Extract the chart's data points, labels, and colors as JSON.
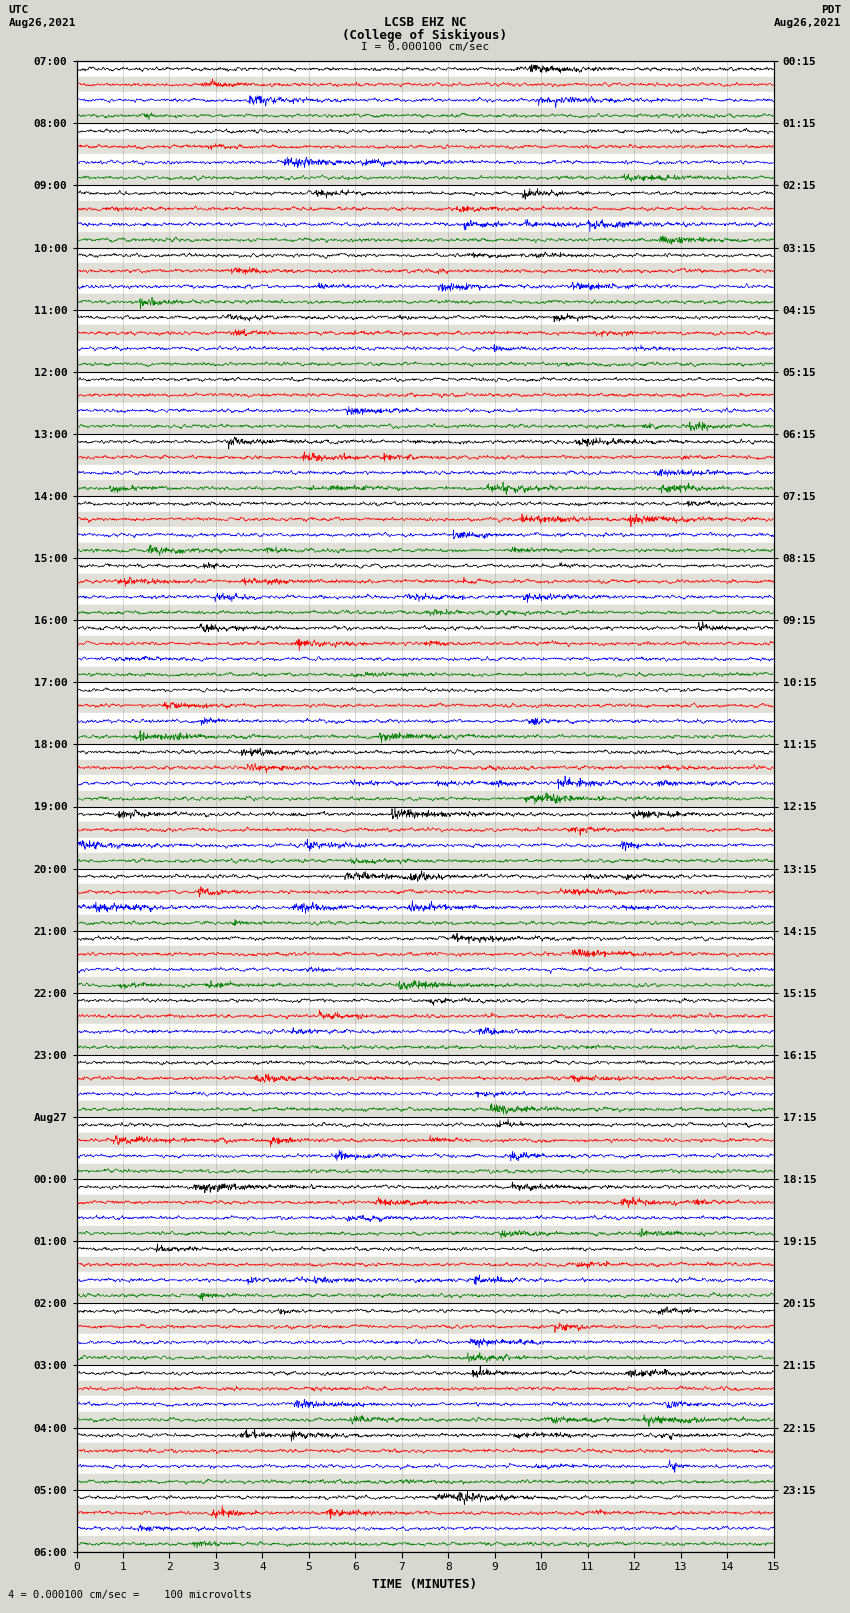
{
  "title_line1": "LCSB EHZ NC",
  "title_line2": "(College of Siskiyous)",
  "left_label_top": "UTC",
  "left_label_date": "Aug26,2021",
  "right_label_top": "PDT",
  "right_label_date": "Aug26,2021",
  "scale_text": "I = 0.000100 cm/sec",
  "bottom_label": "TIME (MINUTES)",
  "bottom_note": "4 = 0.000100 cm/sec =    100 microvolts",
  "x_ticks": [
    0,
    1,
    2,
    3,
    4,
    5,
    6,
    7,
    8,
    9,
    10,
    11,
    12,
    13,
    14,
    15
  ],
  "utc_times_left": [
    "07:00",
    "08:00",
    "09:00",
    "10:00",
    "11:00",
    "12:00",
    "13:00",
    "14:00",
    "15:00",
    "16:00",
    "17:00",
    "18:00",
    "19:00",
    "20:00",
    "21:00",
    "22:00",
    "23:00",
    "Aug27",
    "00:00",
    "01:00",
    "02:00",
    "03:00",
    "04:00",
    "05:00",
    "06:00"
  ],
  "pdt_times_right": [
    "00:15",
    "01:15",
    "02:15",
    "03:15",
    "04:15",
    "05:15",
    "06:15",
    "07:15",
    "08:15",
    "09:15",
    "10:15",
    "11:15",
    "12:15",
    "13:15",
    "14:15",
    "15:15",
    "16:15",
    "17:15",
    "18:15",
    "19:15",
    "20:15",
    "21:15",
    "22:15",
    "23:15"
  ],
  "colors": [
    "black",
    "red",
    "blue",
    "green"
  ],
  "bg_color": "#d8d8d0",
  "stripe_colors": [
    "#ffffff",
    "#e0e0d8"
  ],
  "num_hours": 24,
  "traces_per_hour": 4,
  "noise_seed": 12345,
  "amplitude": 0.42,
  "time_points": 1800,
  "x_min": 0,
  "x_max": 15,
  "vert_grid_color": "#999999",
  "horiz_line_color": "#000000",
  "title_fontsize": 9,
  "label_fontsize": 8,
  "tick_fontsize": 8,
  "trace_lw": 0.5
}
